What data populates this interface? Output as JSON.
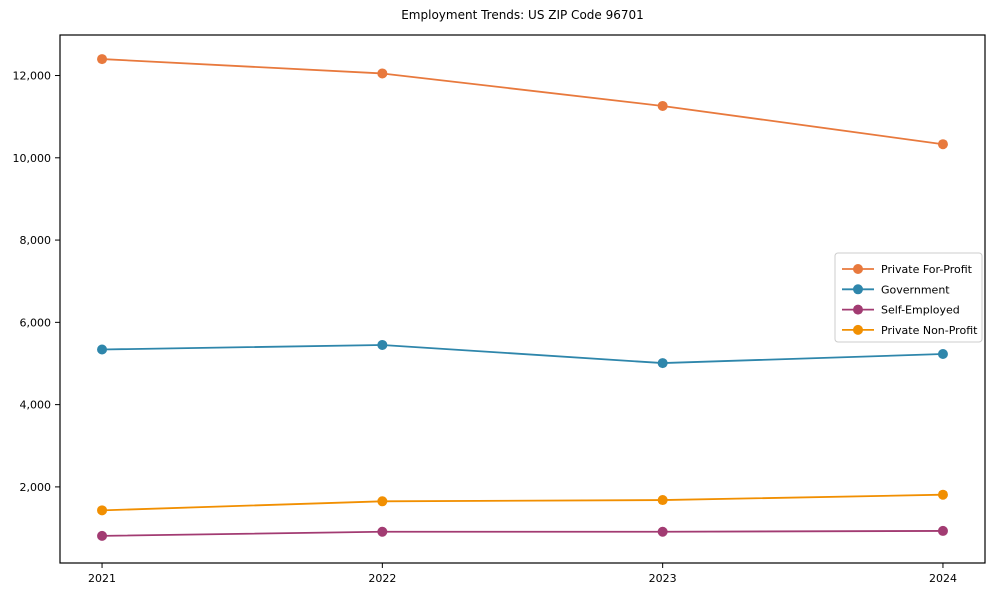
{
  "chart_data": {
    "type": "line",
    "title": "Employment Trends: US ZIP Code 96701",
    "xlabel": "",
    "ylabel": "",
    "x": [
      2021,
      2022,
      2023,
      2024
    ],
    "x_tick_labels": [
      "2021",
      "2022",
      "2023",
      "2024"
    ],
    "series": [
      {
        "name": "Private For-Profit",
        "color": "#E8793D",
        "values": [
          12400,
          12050,
          11260,
          10330
        ]
      },
      {
        "name": "Government",
        "color": "#2E86AB",
        "values": [
          5340,
          5450,
          5010,
          5230
        ]
      },
      {
        "name": "Self-Employed",
        "color": "#A23B72",
        "values": [
          810,
          910,
          910,
          930
        ]
      },
      {
        "name": "Private Non-Profit",
        "color": "#F18F01",
        "values": [
          1430,
          1650,
          1680,
          1810
        ]
      }
    ],
    "yticks": [
      {
        "value": 2000,
        "label": "2,000"
      },
      {
        "value": 4000,
        "label": "4,000"
      },
      {
        "value": 6000,
        "label": "6,000"
      },
      {
        "value": 8000,
        "label": "8,000"
      },
      {
        "value": 10000,
        "label": "10,000"
      },
      {
        "value": 12000,
        "label": "12,000"
      }
    ],
    "xlim": [
      2020.85,
      2024.15
    ],
    "ylim": [
      150,
      12985
    ],
    "grid": false,
    "legend_position": "center-right",
    "marker": "circle",
    "frame_color": "#000000",
    "legend_border_color": "#cccccc",
    "legend_background": "#ffffff",
    "text_color": "#000000"
  }
}
